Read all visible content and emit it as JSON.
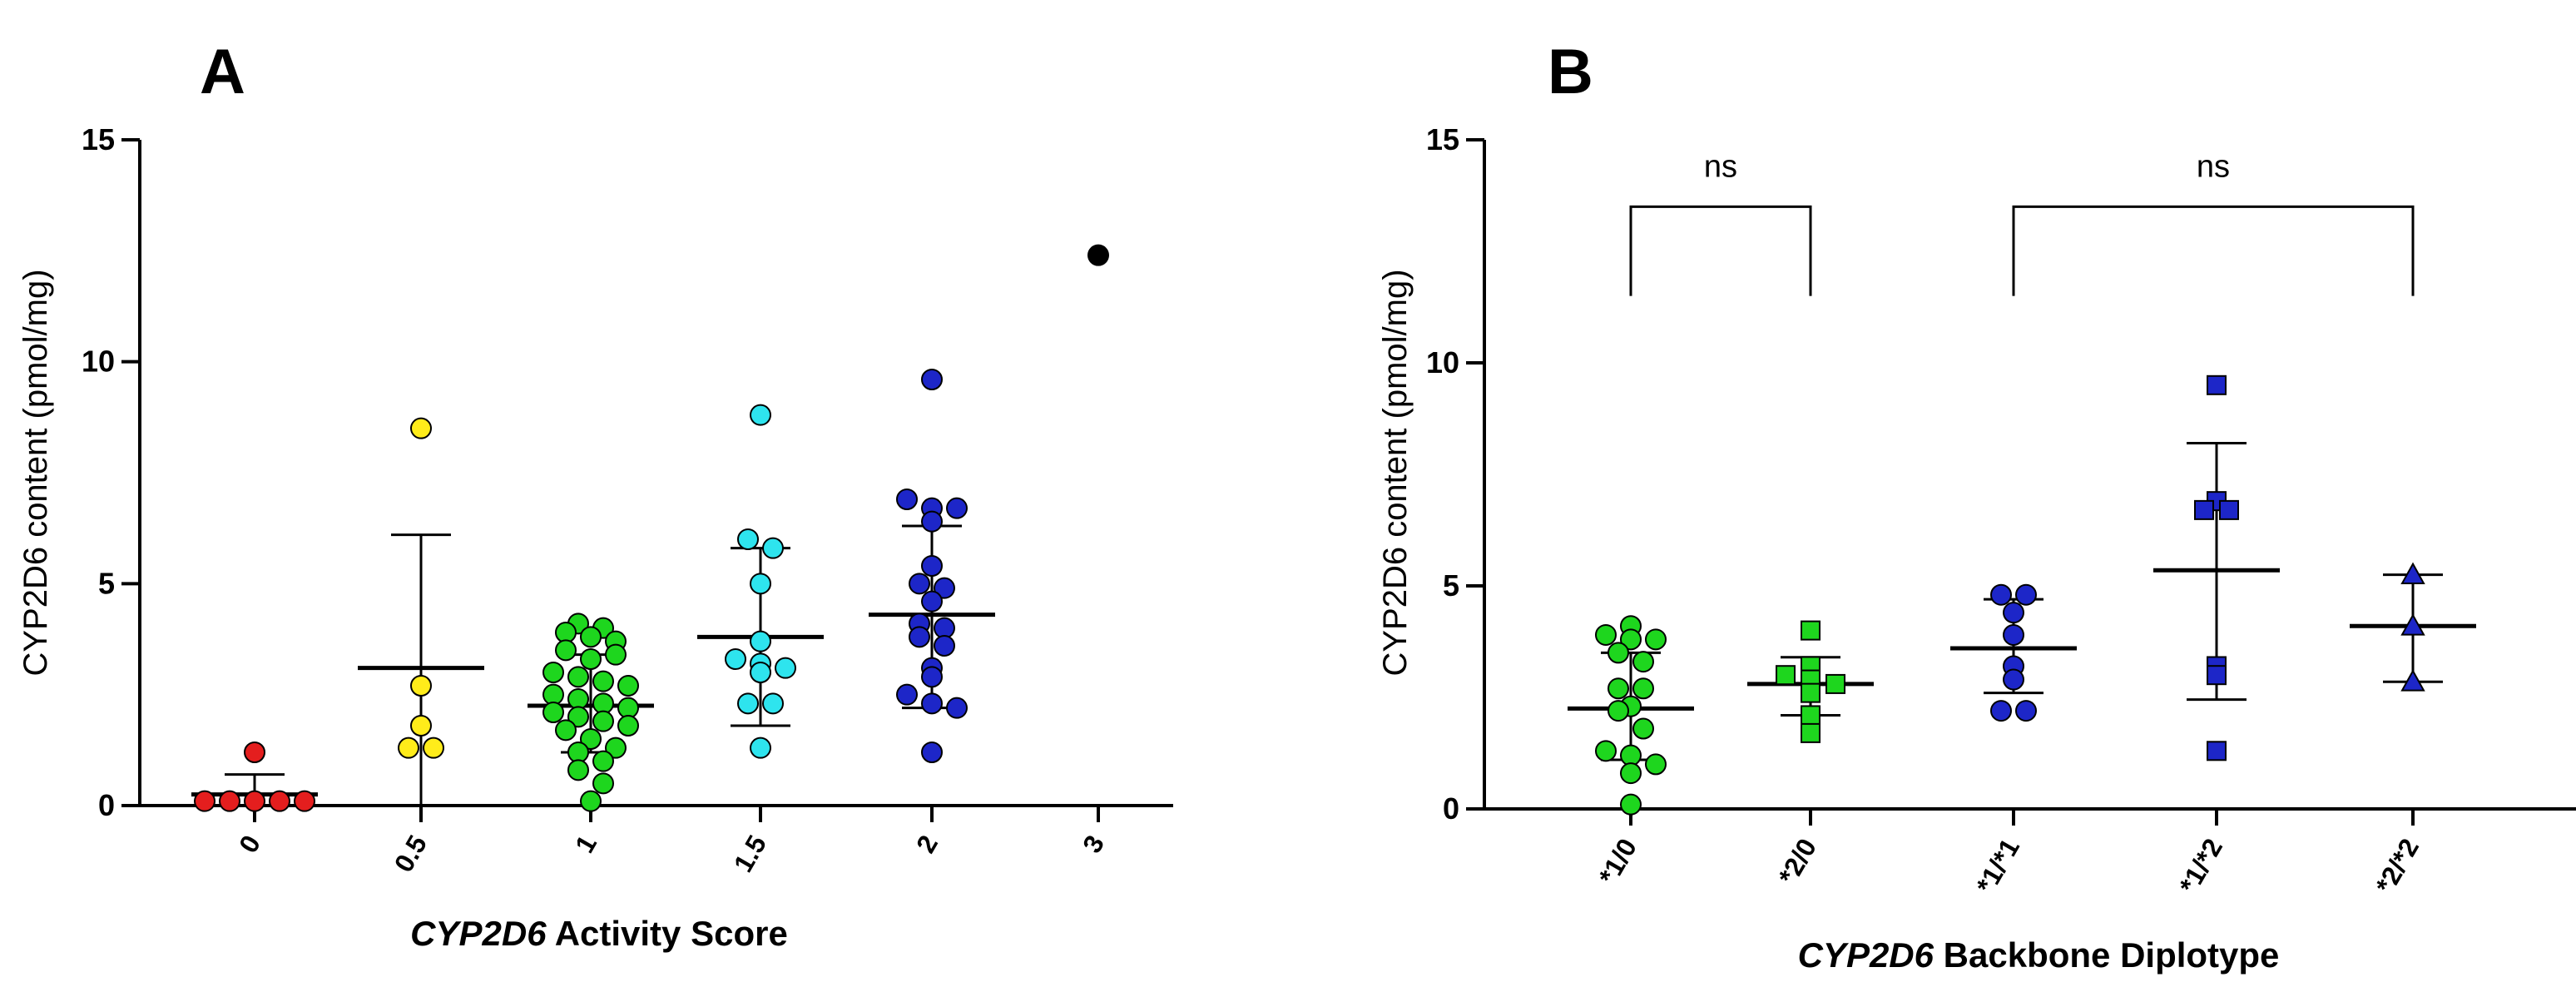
{
  "chart_data": [
    {
      "panel_label": "A",
      "type": "scatter",
      "xlabel_italic": "CYP2D6",
      "xlabel_rest": " Activity Score",
      "ylabel": "CYP2D6 content (pmol/mg)",
      "ylim": [
        0,
        15
      ],
      "yticks": [
        "0",
        "5",
        "10",
        "15"
      ],
      "categories": [
        "0",
        "0.5",
        "1",
        "1.5",
        "2",
        "3"
      ],
      "groups": [
        {
          "category": "0",
          "color": "#e41e1e",
          "marker": "circle",
          "mean": 0.25,
          "err_low": 0.0,
          "err_high": 0.7,
          "points": [
            1.2,
            0.1,
            0.1,
            0.1,
            0.1,
            0.1
          ]
        },
        {
          "category": "0.5",
          "color": "#ffec1a",
          "marker": "circle",
          "mean": 3.1,
          "err_low": 0.0,
          "err_high": 6.1,
          "points": [
            8.5,
            2.7,
            1.8,
            1.3,
            1.3
          ]
        },
        {
          "category": "1",
          "color": "#1ed61e",
          "marker": "circle",
          "mean": 2.25,
          "err_low": 1.2,
          "err_high": 3.4,
          "points": [
            4.1,
            3.9,
            4.0,
            3.8,
            3.7,
            3.5,
            3.3,
            3.4,
            3.0,
            2.9,
            2.8,
            2.7,
            2.5,
            2.4,
            2.3,
            2.2,
            2.1,
            2.0,
            1.9,
            1.8,
            1.7,
            1.5,
            1.3,
            1.2,
            1.0,
            0.8,
            0.5,
            0.1
          ]
        },
        {
          "category": "1.5",
          "color": "#2ee4ee",
          "marker": "circle",
          "mean": 3.8,
          "err_low": 1.8,
          "err_high": 5.8,
          "points": [
            8.8,
            6.0,
            5.8,
            5.0,
            3.7,
            3.3,
            3.2,
            3.1,
            3.0,
            2.3,
            2.3,
            1.3
          ]
        },
        {
          "category": "2",
          "color": "#1d26c8",
          "marker": "circle",
          "mean": 4.3,
          "err_low": 2.2,
          "err_high": 6.3,
          "points": [
            9.6,
            6.9,
            6.7,
            6.7,
            6.4,
            5.4,
            5.0,
            4.9,
            4.6,
            4.1,
            4.0,
            3.8,
            3.6,
            3.1,
            2.9,
            2.5,
            2.3,
            2.2,
            1.2
          ]
        },
        {
          "category": "3",
          "color": "#000000",
          "marker": "circle",
          "mean": null,
          "err_low": null,
          "err_high": null,
          "points": [
            12.4
          ]
        }
      ]
    },
    {
      "panel_label": "B",
      "type": "scatter",
      "xlabel_italic": "CYP2D6",
      "xlabel_rest": " Backbone Diplotype",
      "ylabel": "CYP2D6 content (pmol/mg)",
      "ylim": [
        0,
        15
      ],
      "yticks": [
        "0",
        "5",
        "10",
        "15"
      ],
      "categories": [
        "*1/0",
        "*2/0",
        "*1/*1",
        "*1/*2",
        "*2/*2"
      ],
      "groups": [
        {
          "category": "*1/0",
          "color": "#1ed61e",
          "marker": "circle",
          "mean": 2.25,
          "err_low": 1.1,
          "err_high": 3.5,
          "points": [
            4.1,
            3.9,
            3.8,
            3.8,
            3.5,
            3.3,
            2.7,
            2.7,
            2.3,
            2.2,
            1.8,
            1.3,
            1.2,
            1.0,
            0.8,
            0.1
          ]
        },
        {
          "category": "*2/0",
          "color": "#1ed61e",
          "marker": "square",
          "mean": 2.8,
          "err_low": 2.1,
          "err_high": 3.4,
          "points": [
            4.0,
            3.2,
            3.0,
            2.9,
            2.8,
            2.6,
            2.1,
            1.7
          ]
        },
        {
          "category": "*1/*1",
          "color": "#1d26c8",
          "marker": "circle",
          "mean": 3.6,
          "err_low": 2.6,
          "err_high": 4.7,
          "points": [
            4.8,
            4.8,
            4.4,
            3.9,
            3.2,
            2.9,
            2.2,
            2.2
          ]
        },
        {
          "category": "*1/*2",
          "color": "#1d26c8",
          "marker": "square",
          "mean": 5.35,
          "err_low": 2.45,
          "err_high": 8.2,
          "points": [
            9.5,
            6.9,
            6.7,
            6.7,
            3.2,
            3.0,
            1.3
          ]
        },
        {
          "category": "*2/*2",
          "color": "#1d26c8",
          "marker": "triangle",
          "mean": 4.1,
          "err_low": 2.85,
          "err_high": 5.25,
          "points": [
            5.25,
            4.1,
            2.85
          ]
        }
      ],
      "significance": [
        {
          "from": "*1/0",
          "to": "*2/0",
          "label": "ns",
          "y_top": 13.5,
          "y_bottom": 11.5
        },
        {
          "from": "*1/*1",
          "to": "*2/*2",
          "label": "ns",
          "y_top": 13.5,
          "y_bottom": 11.5
        }
      ]
    }
  ]
}
